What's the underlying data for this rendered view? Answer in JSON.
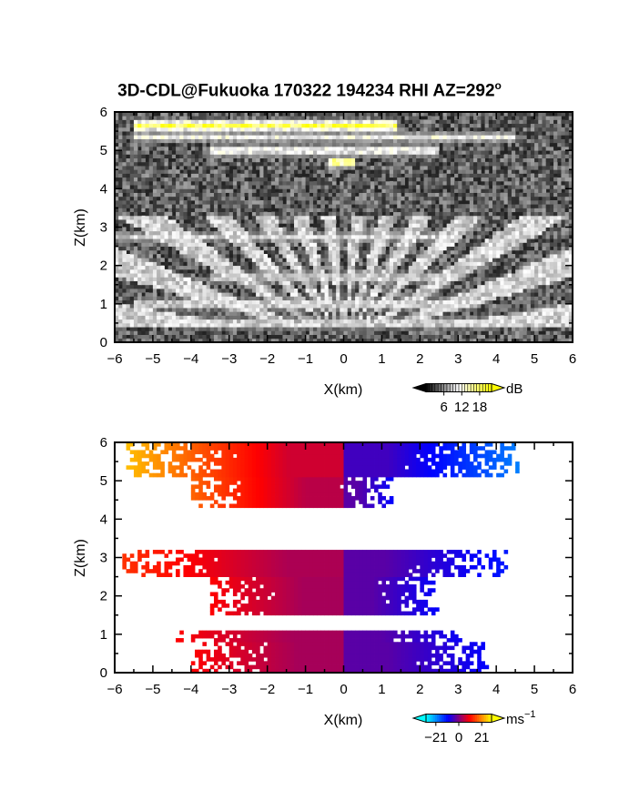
{
  "title_prefix": "3D-CDL@Fukuoka 170322 194234 RHI AZ=292",
  "title_deg": "o",
  "chart_data": [
    {
      "type": "heatmap",
      "quantity": "backscatter intensity",
      "xlabel": "X(km)",
      "ylabel": "Z(km)",
      "xlim": [
        -6,
        6
      ],
      "ylim": [
        0,
        6
      ],
      "xticks": [
        "−6",
        "−5",
        "−4",
        "−3",
        "−2",
        "−1",
        "0",
        "1",
        "2",
        "3",
        "4",
        "5",
        "6"
      ],
      "yticks": [
        "0",
        "1",
        "2",
        "3",
        "4",
        "5",
        "6"
      ],
      "colorbar": {
        "unit": "dB",
        "ticks": [
          "6",
          "12",
          "18"
        ],
        "tick_values": [
          6,
          12,
          18
        ],
        "range": [
          0,
          22
        ],
        "colors": [
          "#000000",
          "#ffffff",
          "#ffff00"
        ]
      },
      "layers": [
        {
          "z": 5.65,
          "x0": -5.5,
          "x1": 1.4,
          "value": 20
        },
        {
          "z": 5.35,
          "x0": -5.5,
          "x1": 4.5,
          "value": 12
        },
        {
          "z": 5.0,
          "x0": -3.5,
          "x1": 2.5,
          "value": 14
        },
        {
          "z": 4.7,
          "x0": -0.4,
          "x1": 0.3,
          "value": 20
        },
        {
          "z": 2.75,
          "x0": -6,
          "x1": 3,
          "value": 10
        },
        {
          "z": 1.7,
          "x0": -3.5,
          "x1": 2.5,
          "value": 11
        },
        {
          "z": 1.0,
          "x0": -5.5,
          "x1": 3.5,
          "value": 12
        },
        {
          "z": 0.5,
          "x0": -4.5,
          "x1": 4,
          "value": 12
        }
      ]
    },
    {
      "type": "heatmap",
      "quantity": "radial velocity",
      "xlabel": "X(km)",
      "ylabel": "Z(km)",
      "xlim": [
        -6,
        6
      ],
      "ylim": [
        0,
        6
      ],
      "xticks": [
        "−6",
        "−5",
        "−4",
        "−3",
        "−2",
        "−1",
        "0",
        "1",
        "2",
        "3",
        "4",
        "5",
        "6"
      ],
      "yticks": [
        "0",
        "1",
        "2",
        "3",
        "4",
        "5",
        "6"
      ],
      "colorbar": {
        "unit": "ms",
        "unit_exp": "−1",
        "ticks": [
          "−21",
          "0",
          "21"
        ],
        "tick_values": [
          -21,
          0,
          21
        ],
        "range": [
          -30,
          30
        ],
        "colors": [
          "#00ffff",
          "#0000ff",
          "#ff0000",
          "#ffff00"
        ]
      },
      "echo_regions": [
        {
          "z0": 5.1,
          "z1": 5.95,
          "x0": -5.7,
          "x1": 4.6,
          "velocity_at_xmin": 25,
          "velocity_at_xmax": -20
        },
        {
          "z0": 4.3,
          "z1": 5.1,
          "x0": -4.0,
          "x1": 1.3,
          "velocity_at_xmin": 18,
          "velocity_at_xmax": -10
        },
        {
          "z0": 2.55,
          "z1": 3.2,
          "x0": -5.8,
          "x1": 4.3,
          "velocity_at_xmin": 14,
          "velocity_at_xmax": -12
        },
        {
          "z0": 1.5,
          "z1": 2.5,
          "x0": -3.5,
          "x1": 2.5,
          "velocity_at_xmin": 10,
          "velocity_at_xmax": -10
        },
        {
          "z0": 0.8,
          "z1": 1.1,
          "x0": -4.4,
          "x1": 3.3,
          "velocity_at_xmin": 10,
          "velocity_at_xmax": -10
        },
        {
          "z0": 0.05,
          "z1": 0.75,
          "x0": -4.0,
          "x1": 3.8,
          "velocity_at_xmin": 10,
          "velocity_at_xmax": -10
        }
      ]
    }
  ]
}
